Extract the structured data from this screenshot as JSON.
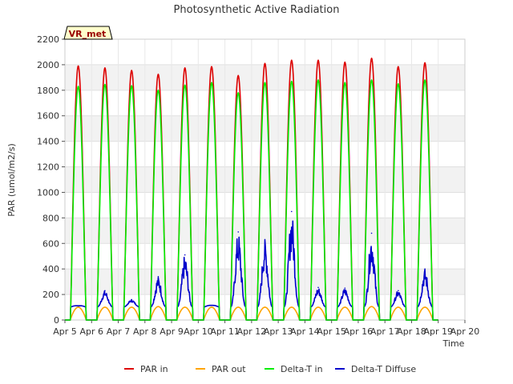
{
  "chart_data": {
    "type": "line",
    "title": "Photosynthetic Active Radiation",
    "xlabel": "Time",
    "ylabel": "PAR (umol/m2/s)",
    "ylim": [
      0,
      2200
    ],
    "yticks": [
      0,
      200,
      400,
      600,
      800,
      1000,
      1200,
      1400,
      1600,
      1800,
      2000,
      2200
    ],
    "xlim": [
      5,
      20
    ],
    "xticks": [
      {
        "value": 5,
        "label": "Apr 5"
      },
      {
        "value": 6,
        "label": "Apr 6"
      },
      {
        "value": 7,
        "label": "Apr 7"
      },
      {
        "value": 8,
        "label": "Apr 8"
      },
      {
        "value": 9,
        "label": "Apr 9"
      },
      {
        "value": 10,
        "label": "Apr 10"
      },
      {
        "value": 11,
        "label": "Apr 11"
      },
      {
        "value": 12,
        "label": "Apr 12"
      },
      {
        "value": 13,
        "label": "Apr 13"
      },
      {
        "value": 14,
        "label": "Apr 14"
      },
      {
        "value": 15,
        "label": "Apr 15"
      },
      {
        "value": 16,
        "label": "Apr 16"
      },
      {
        "value": 17,
        "label": "Apr 17"
      },
      {
        "value": 18,
        "label": "Apr 18"
      },
      {
        "value": 19,
        "label": "Apr 19"
      },
      {
        "value": 20,
        "label": "Apr 20"
      }
    ],
    "band_colors": [
      "#f2f2f2",
      "#ffffff"
    ],
    "site_label": "VR_met",
    "days": [
      5.5,
      6.5,
      7.5,
      8.5,
      9.5,
      10.5,
      11.5,
      12.5,
      13.5,
      14.5,
      15.5,
      16.5,
      17.5,
      18.5
    ],
    "series": [
      {
        "name": "PAR in",
        "color": "#dd0000",
        "daily_peaks": [
          1990,
          1975,
          1955,
          1925,
          1975,
          1985,
          1915,
          2010,
          2035,
          2035,
          2020,
          2050,
          1985,
          2015
        ]
      },
      {
        "name": "PAR out",
        "color": "#ffa500",
        "daily_peaks": [
          100,
          100,
          100,
          105,
          100,
          100,
          100,
          100,
          100,
          100,
          100,
          105,
          100,
          100
        ]
      },
      {
        "name": "Delta-T in",
        "color": "#00ee00",
        "daily_peaks": [
          1830,
          1845,
          1835,
          1800,
          1840,
          1860,
          1780,
          1860,
          1870,
          1880,
          1860,
          1880,
          1850,
          1880
        ]
      },
      {
        "name": "Delta-T Diffuse",
        "color": "#0000cc",
        "daily_peaks": [
          110,
          230,
          160,
          340,
          510,
          115,
          690,
          630,
          850,
          255,
          250,
          680,
          230,
          400
        ]
      }
    ]
  }
}
